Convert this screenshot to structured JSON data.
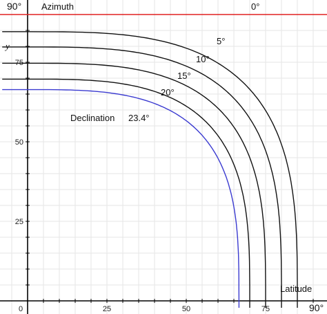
{
  "chart_data": {
    "type": "line",
    "x_label": "Latitude",
    "y_label": "y",
    "y_top_label": "Azimuth",
    "y_top_angle": "90°",
    "zero_curve_label": "0°",
    "x_right_angle": "90°",
    "xlim": [
      -8,
      92
    ],
    "ylim": [
      -4,
      93
    ],
    "x_ticks": [
      0,
      25,
      50,
      75
    ],
    "x_tick_labels": [
      "0",
      "25",
      "50",
      "75"
    ],
    "y_ticks": [
      25,
      50,
      75
    ],
    "y_tick_labels": [
      "25",
      "50",
      "75"
    ],
    "grid": true,
    "accent_colors": {
      "zero_line": "#e02020",
      "declination_23_4": "#3a3ad0",
      "default": "#111111"
    },
    "series": [
      {
        "name": "5°",
        "declination": 5,
        "max_latitude": 85,
        "y_at_0": 84.6,
        "color": "#111111"
      },
      {
        "name": "10°",
        "declination": 10,
        "max_latitude": 80,
        "y_at_0": 79.8,
        "color": "#111111"
      },
      {
        "name": "15°",
        "declination": 15,
        "max_latitude": 75,
        "y_at_0": 74.7,
        "color": "#111111"
      },
      {
        "name": "20°",
        "declination": 20,
        "max_latitude": 70,
        "y_at_0": 69.7,
        "color": "#111111"
      },
      {
        "name": "23.4°",
        "declination": 23.4,
        "max_latitude": 66.6,
        "y_at_0": 66.4,
        "color": "#3a3ad0"
      }
    ],
    "zero_line_y": 90,
    "annotations": [
      {
        "text": "Declination",
        "x": 13,
        "y": 57
      }
    ]
  }
}
